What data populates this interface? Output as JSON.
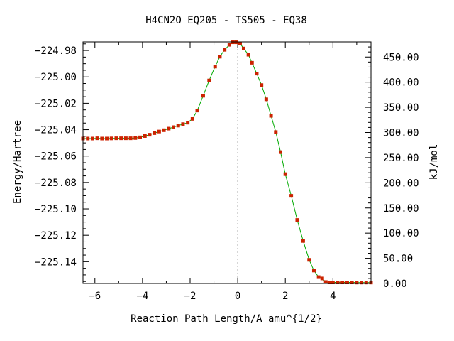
{
  "chart_data": {
    "type": "line",
    "title": "H4CN2O   EQ205 - TS505 - EQ38",
    "xlabel": "Reaction Path Length/A amu^{1/2}",
    "ylabel": "Energy/Hartree",
    "y2label": "kJ/mol",
    "xlim": [
      -6.5,
      5.6
    ],
    "ylim": [
      -225.1565,
      -224.9735
    ],
    "y2lim": [
      0,
      480
    ],
    "x_ticks": [
      -6,
      -4,
      -2,
      0,
      2,
      4
    ],
    "y_ticks": [
      -224.98,
      -225.0,
      -225.02,
      -225.04,
      -225.06,
      -225.08,
      -225.1,
      -225.12,
      -225.14
    ],
    "y2_ticks": [
      "0.00",
      "50.00",
      "100.00",
      "150.00",
      "200.00",
      "250.00",
      "300.00",
      "350.00",
      "400.00",
      "450.00"
    ],
    "grid": false,
    "ts_marker_x": 0,
    "colors": {
      "line": "#00aa00",
      "marker": "#cc2200",
      "dashed": "#999999"
    },
    "series": [
      {
        "x": [
          -6.5,
          -6.3,
          -6.1,
          -5.9,
          -5.7,
          -5.5,
          -5.3,
          -5.1,
          -4.9,
          -4.7,
          -4.5,
          -4.3,
          -4.1,
          -3.9,
          -3.7,
          -3.5,
          -3.3,
          -3.1,
          -2.9,
          -2.7,
          -2.5,
          -2.3,
          -2.1,
          -1.9,
          -1.7,
          -1.45,
          -1.2,
          -0.95,
          -0.75,
          -0.55,
          -0.35,
          -0.2,
          -0.05,
          0.1,
          0.25,
          0.45,
          0.6,
          0.8,
          1.0,
          1.2,
          1.4,
          1.6,
          1.8,
          2.0,
          2.25,
          2.5,
          2.75,
          3.0,
          3.2,
          3.4,
          3.55,
          3.7,
          3.85,
          4.0,
          4.2,
          4.4,
          4.6,
          4.8,
          5.0,
          5.2,
          5.4,
          5.6
        ],
        "y": [
          -225.0467,
          -225.0467,
          -225.0467,
          -225.0465,
          -225.0467,
          -225.0467,
          -225.0466,
          -225.0465,
          -225.0465,
          -225.0465,
          -225.0465,
          -225.0463,
          -225.0458,
          -225.0448,
          -225.0438,
          -225.0426,
          -225.0414,
          -225.0404,
          -225.0392,
          -225.0381,
          -225.0369,
          -225.0358,
          -225.0347,
          -225.0318,
          -225.0255,
          -225.0143,
          -225.0027,
          -224.9922,
          -224.9847,
          -224.9795,
          -224.9757,
          -224.9738,
          -224.9738,
          -224.9748,
          -224.9785,
          -224.9832,
          -224.9893,
          -224.9975,
          -225.0062,
          -225.017,
          -225.0295,
          -225.0418,
          -225.057,
          -225.0737,
          -225.0901,
          -225.1084,
          -225.1243,
          -225.1386,
          -225.1467,
          -225.1517,
          -225.1527,
          -225.1554,
          -225.1557,
          -225.1557,
          -225.1557,
          -225.1557,
          -225.1557,
          -225.1557,
          -225.1558,
          -225.1558,
          -225.1558,
          -225.1558
        ]
      }
    ]
  }
}
